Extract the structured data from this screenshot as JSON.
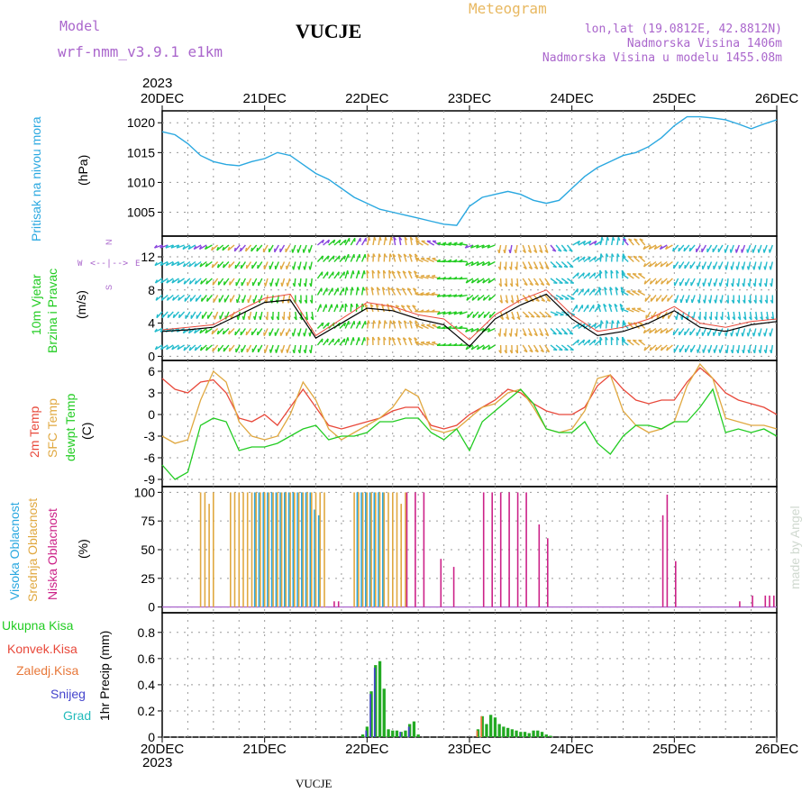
{
  "header": {
    "model_label": "Model",
    "model_name": "wrf-nmm_v3.9.1 e1km",
    "station": "VUCJE",
    "product": "Meteogram",
    "coords": "lon,lat (19.0812E, 42.8812N)",
    "altitude": "Nadmorska Visina 1406m",
    "model_altitude": "Nadmorska Visina u modelu 1455.08m",
    "year_top": "2023",
    "year_bottom": "2023",
    "footer_station": "VUCJE",
    "watermark": "made by Angel"
  },
  "panel_labels": {
    "pressure": [
      "Pritisak na nivou mora",
      "(hPa)"
    ],
    "wind": [
      "10m Vjetar",
      "Brzina i Pravac",
      "(m/s)"
    ],
    "wind_compass": [
      "W",
      "E",
      "N",
      "S"
    ],
    "temp": [
      "2m Temp",
      "SFC Temp",
      "dewpt Temp",
      "(C)"
    ],
    "cloud": [
      "Visoka Oblacnost",
      "Srednja Oblacnost",
      "Niska Oblacnost",
      "(%)"
    ],
    "precip": [
      "Ukupna Kisa",
      "Konvek.Kisa",
      "Zaledj.Kisa",
      "Snijeg",
      "Grad",
      "1hr Precip (mm)"
    ]
  },
  "colors": {
    "pressure": "#2aa8e0",
    "temp2m": "#e8483a",
    "sfc": "#e0a840",
    "dew": "#22cc22",
    "cloud_high": "#2aa8e0",
    "cloud_mid": "#e0a840",
    "cloud_low": "#cc2288",
    "precip_total": "#22aa22",
    "precip_conv": "#e8483a",
    "precip_frz": "#e8783a",
    "precip_snow": "#4444cc",
    "precip_grad": "#22bbbb",
    "model_purple": "#aa66cc",
    "product_orange": "#e8b860"
  },
  "chart_data": [
    {
      "type": "line",
      "panel": "pressure",
      "x_ticks": [
        "20DEC",
        "21DEC",
        "22DEC",
        "23DEC",
        "24DEC",
        "25DEC",
        "26DEC"
      ],
      "ylim": [
        1001,
        1022
      ],
      "y_ticks": [
        "1005",
        "1010",
        "1015",
        "1020"
      ],
      "x_hours": [
        0,
        3,
        6,
        9,
        12,
        15,
        18,
        21,
        24,
        27,
        30,
        33,
        36,
        39,
        42,
        45,
        48,
        51,
        54,
        57,
        60,
        63,
        66,
        69,
        72,
        75,
        78,
        81,
        84,
        87,
        90,
        93,
        96,
        99,
        102,
        105,
        108,
        111,
        114,
        117,
        120,
        123,
        126,
        129,
        132,
        135,
        138,
        141,
        144
      ],
      "series": [
        {
          "values": [
            1018.5,
            1018.0,
            1016.5,
            1014.5,
            1013.5,
            1013.0,
            1012.8,
            1013.5,
            1014.0,
            1015.0,
            1014.5,
            1013.0,
            1011.5,
            1010.5,
            1009.0,
            1007.5,
            1006.5,
            1005.5,
            1005.0,
            1004.5,
            1004.0,
            1003.5,
            1003.0,
            1002.8,
            1006.0,
            1007.5,
            1008.0,
            1008.5,
            1008.0,
            1007.0,
            1006.5,
            1007.0,
            1009.0,
            1011.0,
            1012.5,
            1013.5,
            1014.5,
            1015.0,
            1016.0,
            1017.5,
            1019.5,
            1021.0,
            1021.0,
            1020.8,
            1020.5,
            1019.8,
            1019.0,
            1019.8,
            1020.5
          ]
        }
      ]
    },
    {
      "type": "line",
      "panel": "wind",
      "ylim": [
        -0.5,
        14.5
      ],
      "y_ticks": [
        "0",
        "4",
        "8",
        "12"
      ],
      "x_hours": [
        0,
        6,
        12,
        18,
        24,
        30,
        36,
        42,
        48,
        54,
        60,
        66,
        72,
        78,
        84,
        90,
        96,
        102,
        108,
        114,
        120,
        126,
        132,
        138,
        144
      ],
      "series": [
        {
          "values": [
            3.0,
            3.2,
            3.5,
            5.0,
            6.5,
            6.8,
            2.2,
            4.0,
            5.8,
            5.5,
            4.5,
            3.8,
            1.2,
            4.5,
            6.2,
            7.5,
            4.5,
            2.5,
            3.0,
            4.0,
            5.5,
            3.5,
            3.0,
            3.8,
            4.2
          ]
        },
        {
          "values": [
            3.2,
            3.5,
            3.8,
            5.5,
            7.0,
            7.5,
            2.5,
            4.5,
            6.5,
            6.0,
            5.0,
            4.5,
            2.0,
            5.0,
            6.8,
            8.0,
            5.0,
            3.0,
            3.5,
            4.5,
            6.0,
            4.0,
            3.5,
            4.2,
            4.5
          ]
        }
      ]
    },
    {
      "type": "line",
      "panel": "temp",
      "ylim": [
        -10,
        7.5
      ],
      "y_ticks": [
        "6",
        "3",
        "0",
        "-3",
        "-6",
        "-9"
      ],
      "x_hours": [
        0,
        3,
        6,
        9,
        12,
        15,
        18,
        21,
        24,
        27,
        30,
        33,
        36,
        39,
        42,
        45,
        48,
        51,
        54,
        57,
        60,
        63,
        66,
        69,
        72,
        75,
        78,
        81,
        84,
        87,
        90,
        93,
        96,
        99,
        102,
        105,
        108,
        111,
        114,
        117,
        120,
        123,
        126,
        129,
        132,
        135,
        138,
        141,
        144
      ],
      "series": [
        {
          "name": "2m Temp",
          "values": [
            5.0,
            3.5,
            3.0,
            4.5,
            4.8,
            3.0,
            -0.5,
            -1.0,
            0.0,
            -1.5,
            1.0,
            3.5,
            1.0,
            -1.5,
            -2.0,
            -1.5,
            -1.0,
            -0.5,
            0.5,
            1.0,
            1.0,
            -1.5,
            -2.0,
            -1.5,
            0.0,
            1.0,
            2.0,
            3.5,
            3.0,
            1.5,
            0.5,
            0.0,
            0.0,
            1.0,
            4.0,
            5.5,
            3.5,
            2.0,
            1.5,
            2.0,
            2.0,
            4.5,
            6.5,
            5.0,
            3.0,
            2.0,
            1.5,
            1.0,
            0.0
          ]
        },
        {
          "name": "SFC Temp",
          "values": [
            -3.0,
            -4.0,
            -3.5,
            2.0,
            6.0,
            4.5,
            -1.0,
            -3.0,
            -3.5,
            -3.0,
            0.0,
            4.5,
            2.0,
            -2.0,
            -3.5,
            -2.5,
            -1.5,
            -0.5,
            1.0,
            3.5,
            2.5,
            -2.0,
            -2.5,
            -2.0,
            -0.5,
            1.0,
            1.5,
            3.0,
            3.5,
            1.0,
            -2.0,
            -2.5,
            -2.0,
            0.5,
            5.0,
            5.5,
            0.5,
            -1.5,
            -2.5,
            -2.0,
            -1.0,
            4.0,
            7.0,
            5.0,
            -0.5,
            -1.0,
            -1.5,
            -1.5,
            -2.0
          ]
        },
        {
          "name": "dewpt Temp",
          "values": [
            -7.0,
            -9.0,
            -8.0,
            -1.5,
            -0.5,
            -1.0,
            -5.0,
            -4.5,
            -4.5,
            -4.0,
            -3.0,
            -2.0,
            -1.5,
            -3.5,
            -3.0,
            -3.0,
            -2.5,
            -1.0,
            -1.0,
            -0.5,
            -0.5,
            -2.5,
            -3.5,
            -2.0,
            -5.0,
            -1.0,
            0.5,
            2.0,
            3.5,
            1.5,
            -2.0,
            -2.5,
            -2.5,
            -1.0,
            -4.0,
            -5.5,
            -3.0,
            -1.5,
            -1.5,
            -2.0,
            -1.0,
            -1.0,
            1.0,
            3.5,
            -2.5,
            -2.0,
            -2.5,
            -2.0,
            -3.0
          ]
        }
      ]
    },
    {
      "type": "bar",
      "panel": "cloud",
      "ylim": [
        -5,
        105
      ],
      "y_ticks": [
        "0",
        "25",
        "50",
        "75",
        "100"
      ],
      "series": [
        {
          "name": "Visoka Oblacnost",
          "x_hours": [
            22,
            23,
            24,
            25,
            26,
            27,
            28,
            29,
            30,
            31,
            32,
            33,
            34,
            35,
            36,
            37,
            46,
            47,
            48,
            49,
            50,
            51,
            52
          ],
          "values": [
            100,
            100,
            100,
            100,
            100,
            100,
            100,
            100,
            100,
            100,
            100,
            100,
            100,
            100,
            85,
            80,
            100,
            100,
            100,
            100,
            100,
            100,
            100
          ]
        },
        {
          "name": "Srednja Oblacnost",
          "x_hours": [
            9,
            10,
            11,
            12,
            16,
            17,
            18,
            19,
            20,
            21,
            22,
            23,
            24,
            25,
            26,
            27,
            28,
            29,
            30,
            31,
            32,
            33,
            34,
            35,
            36,
            37,
            38,
            45,
            46,
            47,
            48,
            49,
            50,
            51,
            52,
            53,
            54,
            55,
            56,
            57
          ],
          "values": [
            100,
            100,
            90,
            100,
            100,
            100,
            100,
            100,
            100,
            100,
            100,
            100,
            100,
            100,
            100,
            100,
            100,
            100,
            100,
            100,
            100,
            100,
            100,
            100,
            100,
            100,
            100,
            100,
            100,
            100,
            100,
            100,
            100,
            100,
            100,
            100,
            100,
            100,
            90,
            100
          ]
        },
        {
          "name": "Niska Oblacnost",
          "x_hours": [
            40,
            41,
            57,
            59,
            61,
            65,
            68,
            75,
            77,
            79,
            81,
            83,
            85,
            88,
            90,
            117,
            118,
            119,
            120,
            135,
            138,
            141,
            142,
            143
          ],
          "values": [
            5,
            5,
            100,
            100,
            100,
            42,
            35,
            100,
            100,
            100,
            100,
            100,
            100,
            72,
            60,
            80,
            98,
            0,
            40,
            5,
            10,
            10,
            10,
            10
          ]
        }
      ]
    },
    {
      "type": "bar",
      "panel": "precip",
      "ylim": [
        0,
        0.95
      ],
      "y_ticks": [
        "0",
        "0.2",
        "0.4",
        "0.6",
        "0.8"
      ],
      "x_hours": [
        47,
        48,
        49,
        50,
        51,
        52,
        53,
        54,
        55,
        56,
        57,
        58,
        59,
        60,
        74,
        75,
        76,
        77,
        78,
        79,
        80,
        81,
        82,
        83,
        84,
        85,
        86,
        87,
        88,
        89,
        90,
        91
      ],
      "series": [
        {
          "name": "Ukupna Kisa",
          "values": [
            0.02,
            0.08,
            0.35,
            0.55,
            0.58,
            0.37,
            0.06,
            0.05,
            0.05,
            0.04,
            0.05,
            0.1,
            0.12,
            0.02,
            0.06,
            0.16,
            0.1,
            0.17,
            0.15,
            0.1,
            0.08,
            0.07,
            0.06,
            0.05,
            0.04,
            0.04,
            0.03,
            0.05,
            0.05,
            0.04,
            0.02,
            0.01
          ]
        },
        {
          "name": "Snijeg",
          "values": [
            0.0,
            0.05,
            0.33,
            0.53,
            0.0,
            0.0,
            0.0,
            0.0,
            0.0,
            0.04,
            0.0,
            0.08,
            0.0,
            0.0,
            0.0,
            0.0,
            0.0,
            0.0,
            0.0,
            0.0,
            0.0,
            0.0,
            0.0,
            0.0,
            0.0,
            0.0,
            0.0,
            0.0,
            0.0,
            0.0,
            0.0,
            0.0
          ]
        },
        {
          "name": "Zaledj.Kisa",
          "values": [
            0.0,
            0.0,
            0.0,
            0.0,
            0.0,
            0.0,
            0.0,
            0.0,
            0.0,
            0.0,
            0.0,
            0.0,
            0.0,
            0.0,
            0.05,
            0.16,
            0.0,
            0.0,
            0.0,
            0.0,
            0.0,
            0.0,
            0.0,
            0.0,
            0.0,
            0.0,
            0.0,
            0.0,
            0.0,
            0.0,
            0.0,
            0.0
          ]
        }
      ]
    }
  ]
}
